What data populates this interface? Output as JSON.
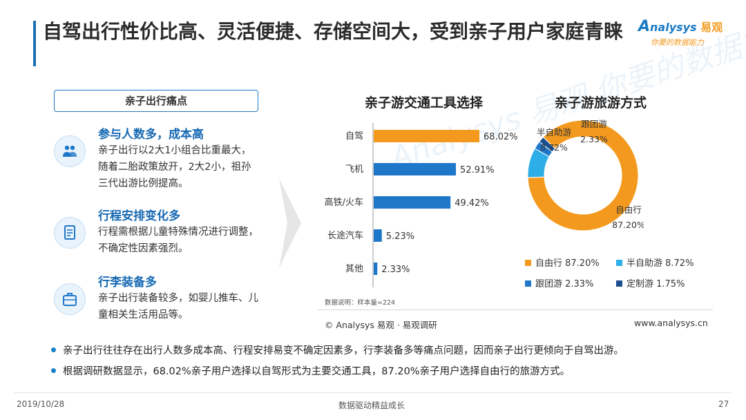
{
  "title": "自驾出行性价比高、灵活便捷、存储空间大，受到亲子用户家庭青睐",
  "logo": {
    "brand": "nalysys",
    "brand_prefix": "A",
    "brand_cn": "易观",
    "slogan": "你要的数据能力"
  },
  "pain_points": {
    "header": "亲子出行痛点",
    "items": [
      {
        "title": "参与人数多，成本高",
        "text": "亲子出行以2大1小组合比重最大，随着二胎政策放开，2大2小，祖孙三代出游比例提高。",
        "icon": "people-icon"
      },
      {
        "title": "行程安排变化多",
        "text": "行程需根据儿童特殊情况进行调整，不确定性因素强烈。",
        "icon": "document-icon"
      },
      {
        "title": "行李装备多",
        "text": "亲子出行装备较多，如婴儿推车、儿童相关生活用品等。",
        "icon": "luggage-icon"
      }
    ]
  },
  "colors": {
    "accent": "#1a6fb3",
    "bar": "#1f77c9",
    "bar_highlight": "#f39a1e",
    "orange": "#f39a1e",
    "light_blue": "#2eaee6",
    "blue": "#1f77c9",
    "dark_blue": "#1b4f8e"
  },
  "chart_data": [
    {
      "type": "bar",
      "orientation": "horizontal",
      "title": "亲子游交通工具选择",
      "categories": [
        "自驾",
        "飞机",
        "高铁/火车",
        "长途汽车",
        "其他"
      ],
      "values": [
        68.02,
        52.91,
        49.42,
        5.23,
        2.33
      ],
      "labels": [
        "68.02%",
        "52.91%",
        "49.42%",
        "5.23%",
        "2.33%"
      ],
      "xlim": [
        0,
        100
      ],
      "highlight_index": 0
    },
    {
      "type": "pie",
      "donut": true,
      "title": "亲子游旅游方式",
      "categories": [
        "自由行",
        "半自助游",
        "跟团游",
        "定制游"
      ],
      "values": [
        87.2,
        8.72,
        2.33,
        1.75
      ],
      "labels": [
        "87.20%",
        "8.72%",
        "2.33%",
        "1.75%"
      ],
      "legend": [
        "自由行 87.20%",
        "半自助游 8.72%",
        "跟团游 2.33%",
        "定制游 1.75%"
      ],
      "legend_position": "bottom"
    }
  ],
  "chart_note": "数据说明：样本量=224",
  "copyright": "© Analysys 易观 · 易观调研",
  "website": "www.analysys.cn",
  "watermark": "Analysys 易观 你要的数据能力",
  "bullets": [
    "亲子出行往往存在出行人数多成本高、行程安排易变不确定因素多，行李装备多等痛点问题，因而亲子出行更倾向于自驾出游。",
    "根据调研数据显示，68.02%亲子用户选择以自驾形式为主要交通工具，87.20%亲子用户选择自由行的旅游方式。"
  ],
  "footer": {
    "date": "2019/10/28",
    "center": "数据驱动精益成长",
    "page": "27"
  }
}
